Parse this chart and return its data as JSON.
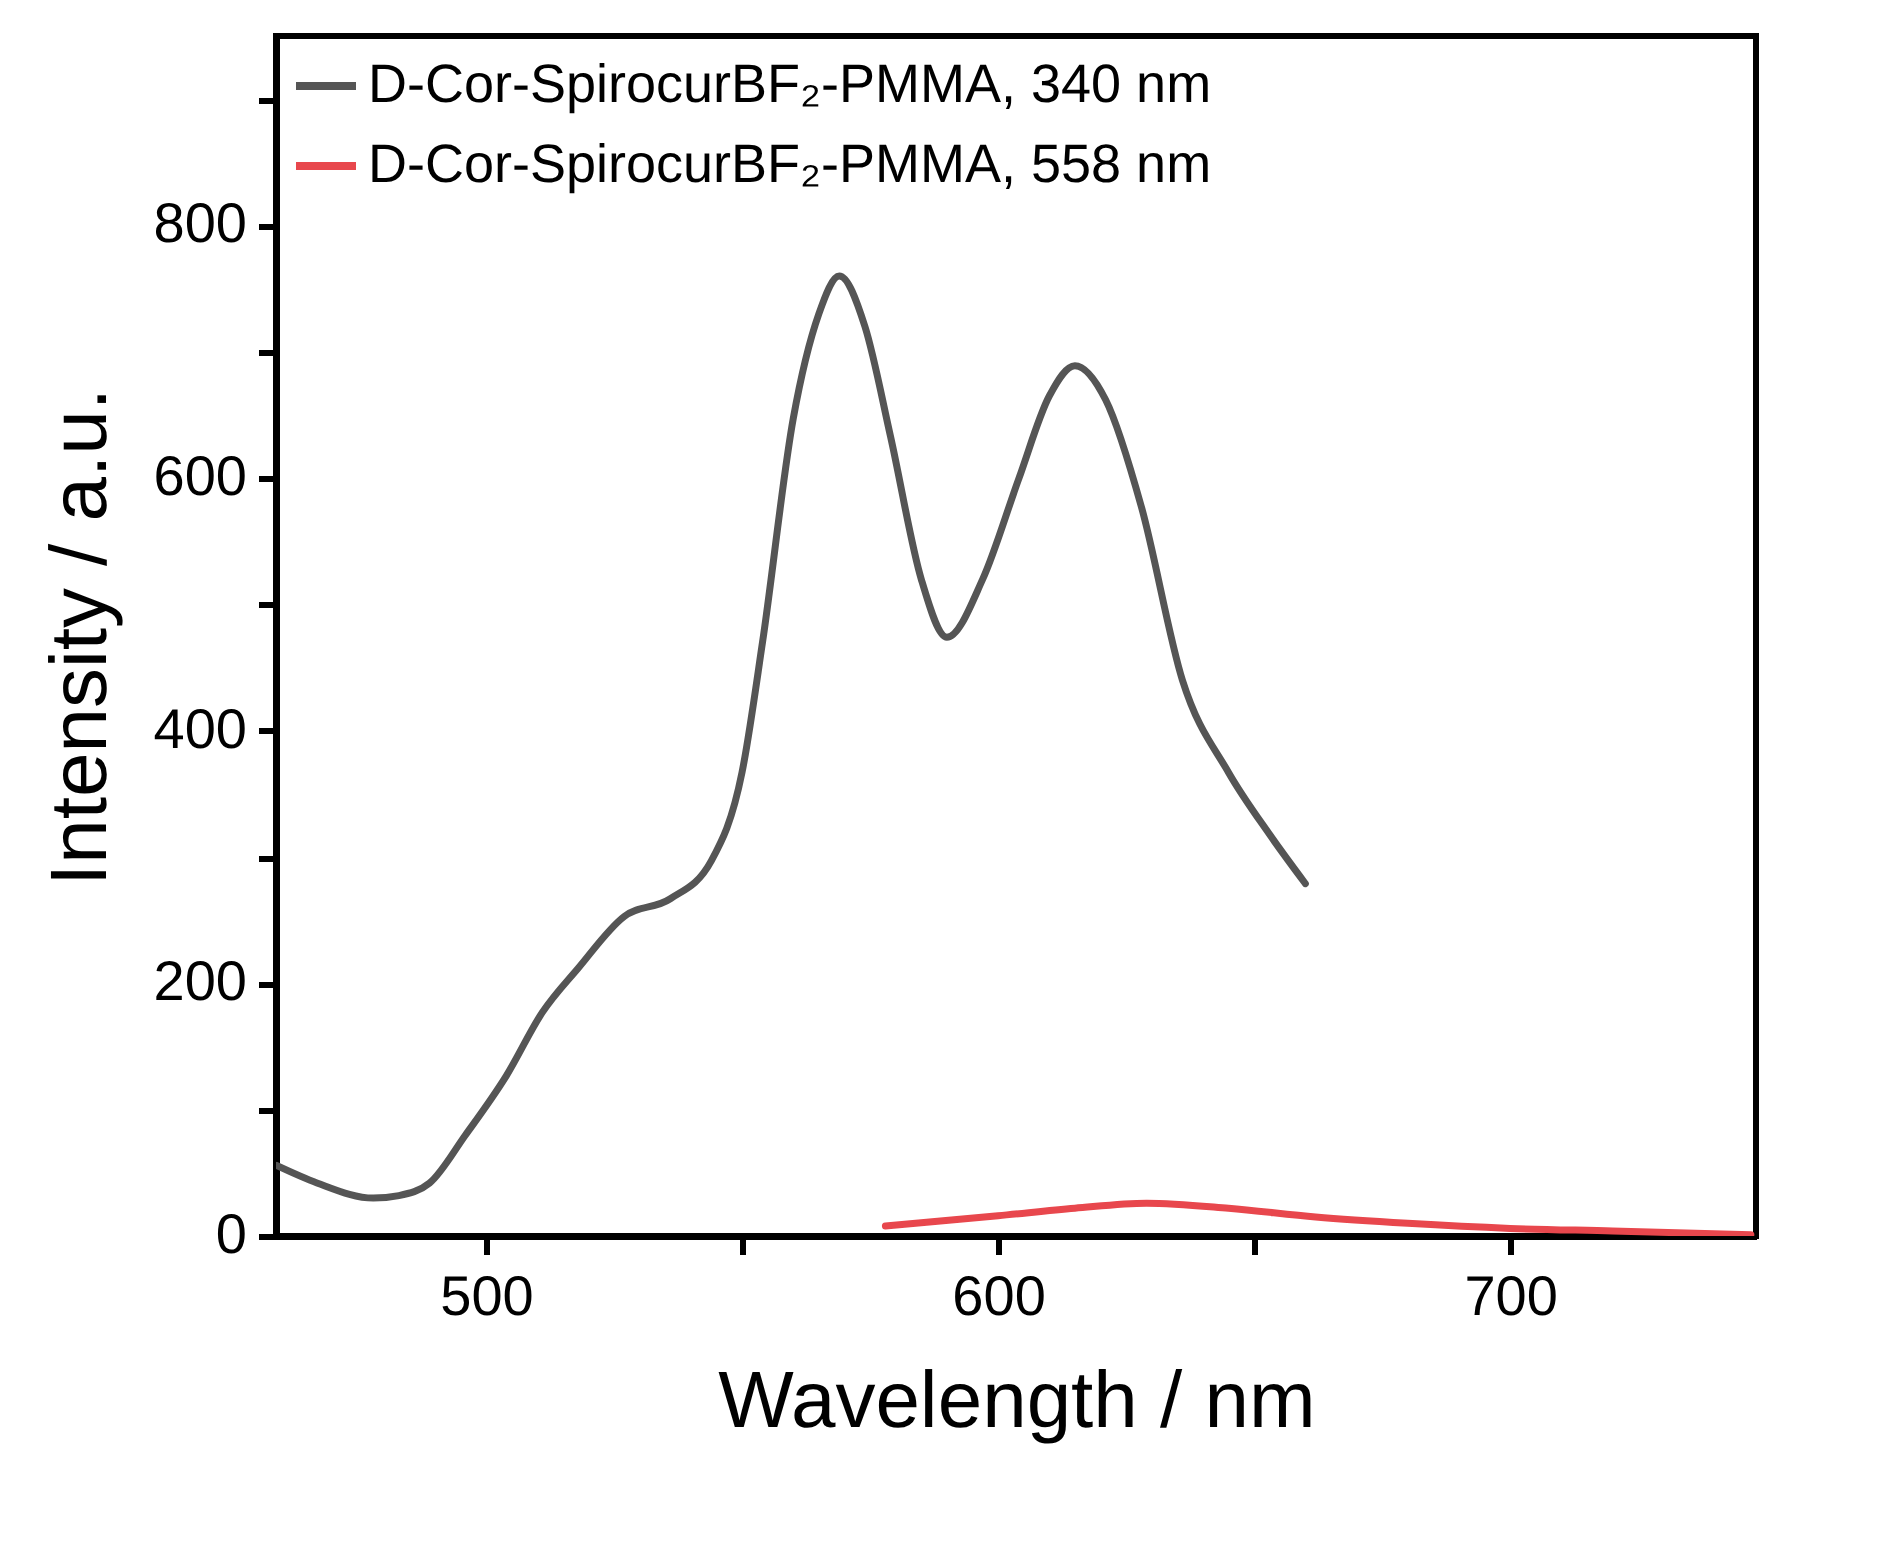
{
  "chart_data": {
    "type": "line",
    "xlabel": "Wavelength / nm",
    "ylabel": "Intensity / a.u.",
    "xlim": [
      459,
      748
    ],
    "xticks": [
      500,
      {
        "value": 550,
        "label": null
      },
      600,
      {
        "value": 650,
        "label": null
      },
      700
    ],
    "ylim": [
      0,
      950
    ],
    "yticks": [
      0,
      {
        "value": 100,
        "label": null
      },
      200,
      {
        "value": 300,
        "label": null
      },
      400,
      {
        "value": 500,
        "label": null
      },
      600,
      {
        "value": 700,
        "label": null
      },
      800,
      {
        "value": 900,
        "label": null
      }
    ],
    "legend": "top left",
    "grid": false,
    "marker": "none",
    "line_style": "solid",
    "series": [
      {
        "name": "D-Cor-SpirocurBF₂-PMMA, 340 nm",
        "color": "#555555",
        "x": [
          459,
          467,
          478,
          483,
          489,
          496,
          504,
          511,
          518,
          527,
          536,
          544,
          550,
          554,
          560,
          565,
          569,
          574,
          579,
          585,
          590,
          597,
          604,
          610,
          615,
          621,
          628,
          636,
          645,
          653,
          660
        ],
        "values": [
          56,
          42,
          30,
          32,
          42,
          80,
          127,
          177,
          212,
          253,
          267,
          297,
          367,
          470,
          647,
          730,
          760,
          720,
          633,
          520,
          474,
          520,
          599,
          665,
          689,
          662,
          577,
          440,
          367,
          318,
          279
        ]
      },
      {
        "name": "D-Cor-SpirocurBF₂-PMMA, 558 nm",
        "color": "#e8474d",
        "x": [
          578,
          600,
          615,
          629,
          645,
          662,
          680,
          700,
          720,
          747
        ],
        "values": [
          8,
          16,
          22,
          26,
          22,
          15,
          10,
          6,
          4,
          1
        ]
      }
    ]
  }
}
